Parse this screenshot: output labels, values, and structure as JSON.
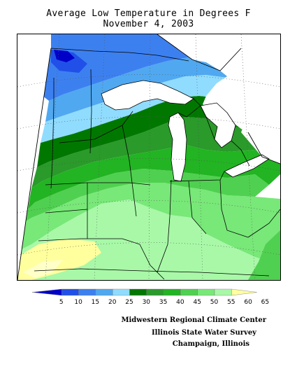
{
  "header": {
    "title": "Average Low Temperature in Degrees F",
    "date": "November 4, 2003"
  },
  "legend": {
    "ticks": [
      "5",
      "10",
      "15",
      "20",
      "25",
      "30",
      "35",
      "40",
      "45",
      "50",
      "55",
      "60",
      "65"
    ],
    "colors": [
      "#0000c8",
      "#2050e8",
      "#3c80f0",
      "#50a8f0",
      "#90dcff",
      "#007800",
      "#2a9a2a",
      "#22b422",
      "#50d050",
      "#78e878",
      "#a8f8a8",
      "#ffff9e"
    ]
  },
  "credits": {
    "line1": "Midwestern Regional Climate Center",
    "line2": "Illinois State Water Survey",
    "line3": "Champaign, Illinois"
  }
}
